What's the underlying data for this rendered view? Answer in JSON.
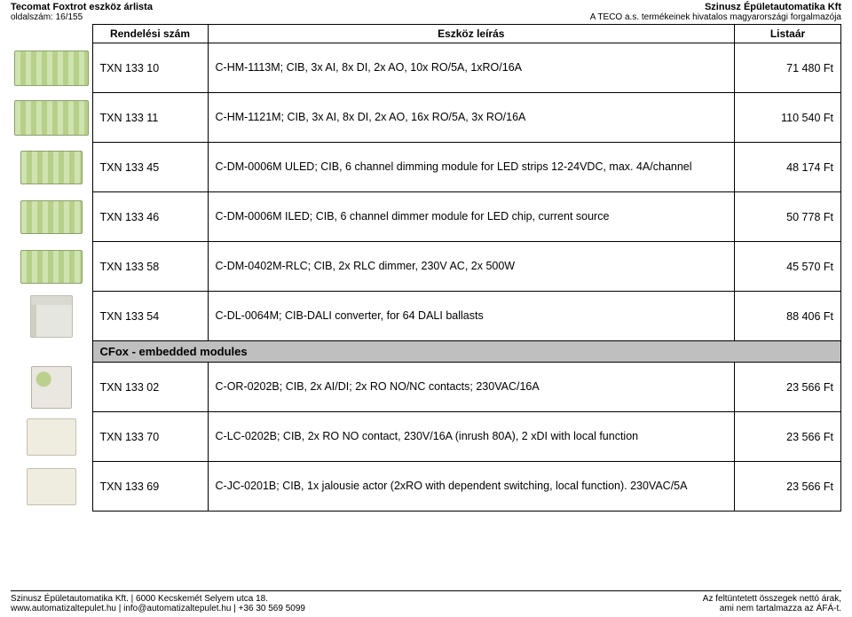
{
  "header": {
    "left_line1": "Tecomat Foxtrot eszköz árlista",
    "left_line2": "oldalszám: 16/155",
    "right_line1": "Szinusz Épületautomatika Kft",
    "right_line2": "A TECO a.s. termékeinek hivatalos magyarországi forgalmazója"
  },
  "columns": {
    "code": "Rendelési szám",
    "desc": "Eszköz leírás",
    "price": "Listaár"
  },
  "rows": [
    {
      "code": "TXN 133 10",
      "desc": "C-HM-1113M; CIB, 3x AI, 8x DI, 2x AO, 10x RO/5A, 1xRO/16A",
      "price": "71 480 Ft",
      "thumb": "thumb"
    },
    {
      "code": "TXN 133 11",
      "desc": "C-HM-1121M; CIB, 3x AI, 8x DI, 2x AO, 16x RO/5A, 3x RO/16A",
      "price": "110 540 Ft",
      "thumb": "thumb"
    },
    {
      "code": "TXN 133 45",
      "desc": "C-DM-0006M ULED; CIB, 6 channel dimming module for LED strips 12-24VDC, max. 4A/channel",
      "price": "48 174 Ft",
      "thumb": "thumb compact"
    },
    {
      "code": "TXN 133 46",
      "desc": "C-DM-0006M ILED; CIB, 6 channel dimmer module for LED chip, current source",
      "price": "50 778 Ft",
      "thumb": "thumb compact"
    },
    {
      "code": "TXN 133 58",
      "desc": "C-DM-0402M-RLC; CIB, 2x RLC dimmer, 230V AC, 2x 500W",
      "price": "45 570 Ft",
      "thumb": "thumb compact"
    },
    {
      "code": "TXN 133 54",
      "desc": "C-DL-0064M; CIB-DALI converter, for 64 DALI ballasts",
      "price": "88 406 Ft",
      "thumb": "thumb grey"
    }
  ],
  "section_title": "CFox - embedded modules",
  "rows2": [
    {
      "code": "TXN 133 02",
      "desc": "C-OR-0202B; CIB, 2x AI/DI; 2x RO NO/NC contacts; 230VAC/16A",
      "price": "23 566 Ft",
      "thumb": "thumb small"
    },
    {
      "code": "TXN 133 70",
      "desc": "C-LC-0202B; CIB, 2x RO NO contact, 230V/16A (inrush 80A), 2 xDI with local function",
      "price": "23 566 Ft",
      "thumb": "thumb tiny"
    },
    {
      "code": "TXN 133 69",
      "desc": "C-JC-0201B; CIB, 1x jalousie actor (2xRO with dependent switching, local function). 230VAC/5A",
      "price": "23 566 Ft",
      "thumb": "thumb tiny"
    }
  ],
  "footer": {
    "left_line1": "Szinusz Épületautomatika Kft. | 6000 Kecskemét Selyem utca 18.",
    "left_line2": "www.automatizaltepulet.hu | info@automatizaltepulet.hu | +36 30 569 5099",
    "right_line1": "Az feltüntetett összegek nettó árak,",
    "right_line2": "ami nem tartalmazza az ÁFÁ-t."
  }
}
